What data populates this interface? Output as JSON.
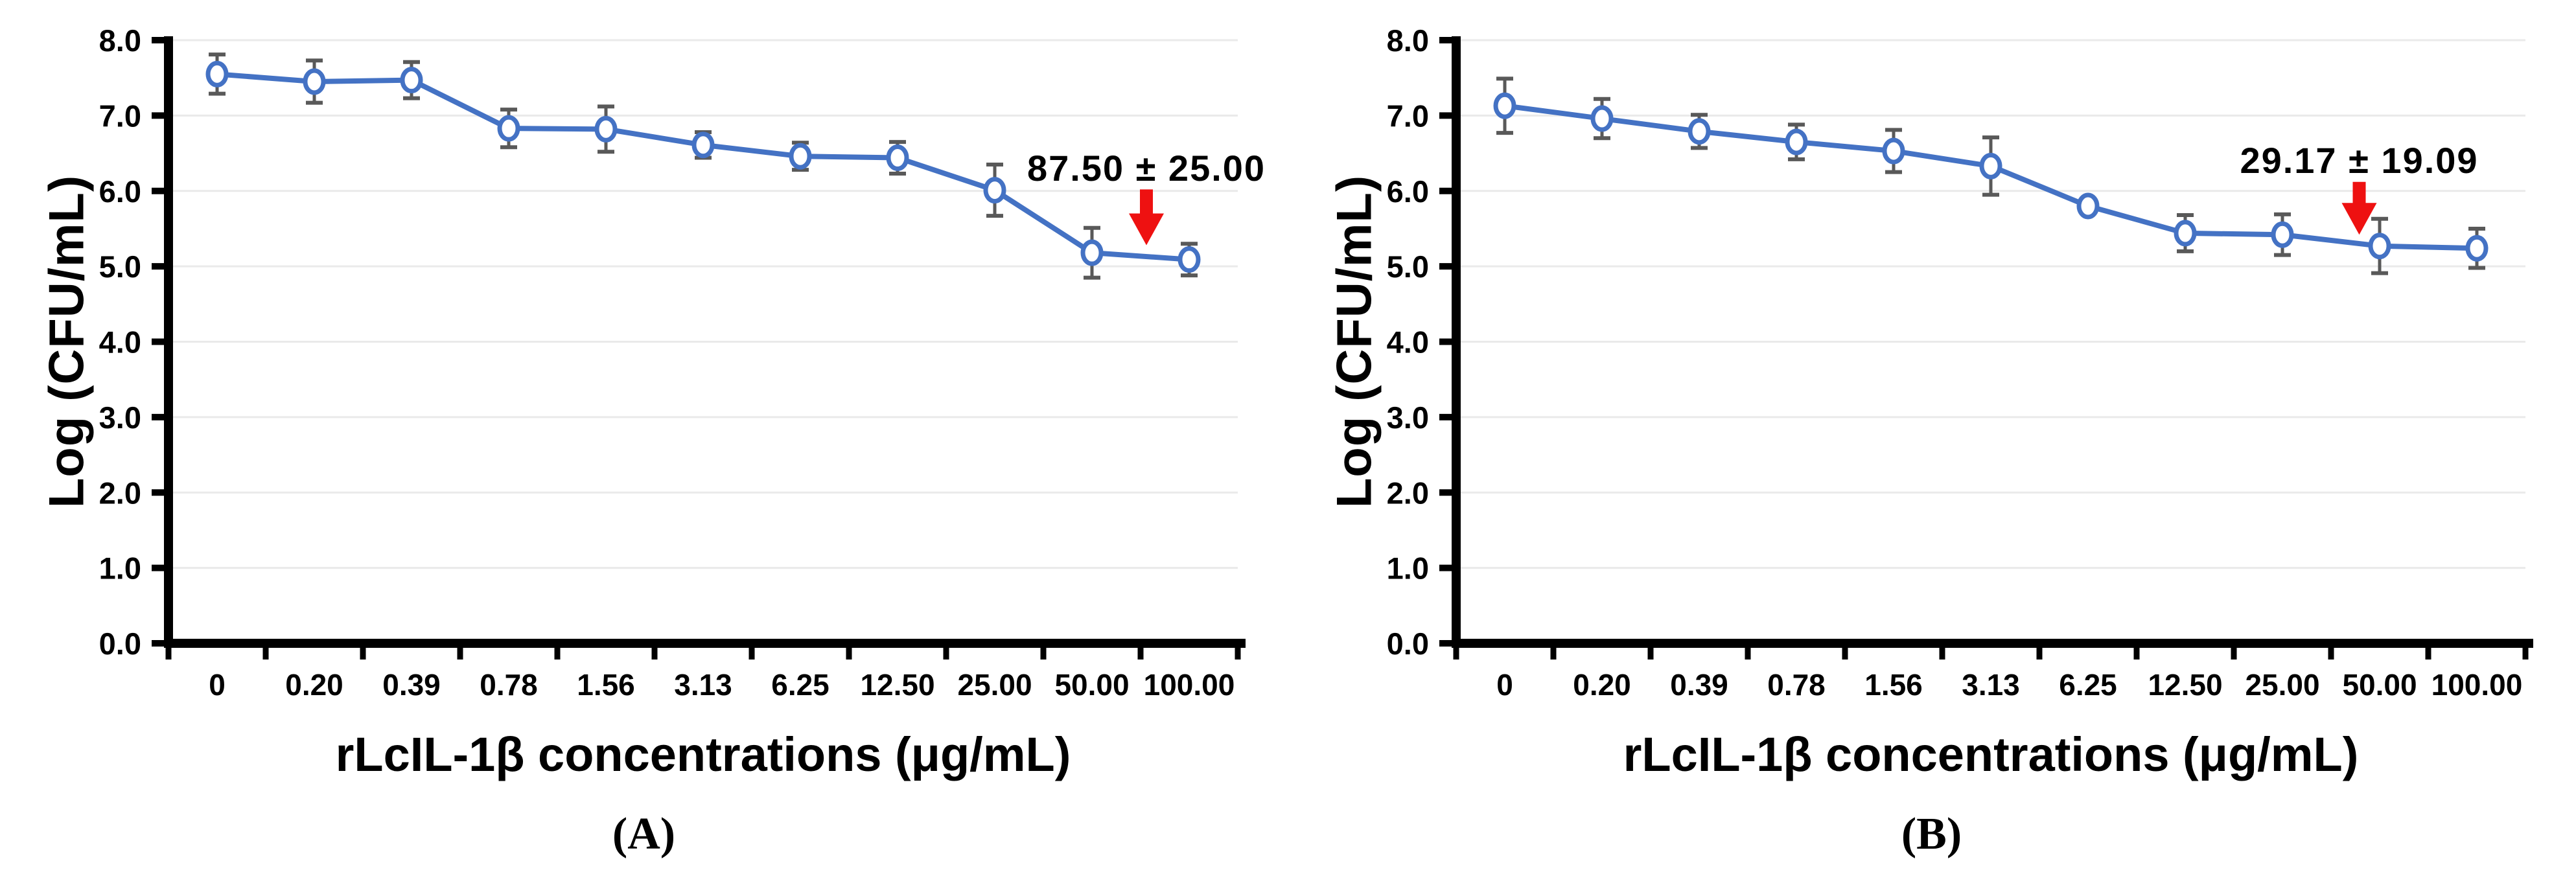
{
  "style": {
    "background": "#FFFFFF",
    "line_color": "#4472C4",
    "marker_fill": "#FFFFFF",
    "error_bar_color": "#595959",
    "grid_color": "#EAEAEA",
    "axis_color": "#000000",
    "arrow_color": "#EE1111",
    "text_color": "#000000"
  },
  "chart_data": [
    {
      "type": "line",
      "panel_label": "(A)",
      "xlabel": "rLcIL-1β concentrations (μg/mL)",
      "ylabel": "Log (CFU/mL)",
      "categories": [
        "0",
        "0.20",
        "0.39",
        "0.78",
        "1.56",
        "3.13",
        "6.25",
        "12.50",
        "25.00",
        "50.00",
        "100.00"
      ],
      "series": [
        {
          "name": "Log CFU/mL",
          "values": [
            7.55,
            7.45,
            7.47,
            6.83,
            6.82,
            6.61,
            6.46,
            6.44,
            6.01,
            5.18,
            5.09
          ],
          "errors": [
            0.26,
            0.28,
            0.24,
            0.25,
            0.3,
            0.17,
            0.18,
            0.21,
            0.34,
            0.33,
            0.21
          ]
        }
      ],
      "ylim": [
        0.0,
        8.0
      ],
      "ytick_labels": [
        "0.0",
        "1.0",
        "2.0",
        "3.0",
        "4.0",
        "5.0",
        "6.0",
        "7.0",
        "8.0"
      ],
      "grid": true,
      "legend": "none",
      "marker": "open-circle",
      "annotation": {
        "label": "87.50 ± 25.00",
        "x_index": 9.56,
        "label_y": 6.3,
        "arrow_top_y": 6.02,
        "arrow_tip_y": 5.28
      }
    },
    {
      "type": "line",
      "panel_label": "(B)",
      "xlabel": "rLcIL-1β concentrations (μg/mL)",
      "ylabel": "Log (CFU/mL)",
      "categories": [
        "0",
        "0.20",
        "0.39",
        "0.78",
        "1.56",
        "3.13",
        "6.25",
        "12.50",
        "25.00",
        "50.00",
        "100.00"
      ],
      "series": [
        {
          "name": "Log CFU/mL",
          "values": [
            7.13,
            6.96,
            6.79,
            6.65,
            6.53,
            6.33,
            5.8,
            5.44,
            5.42,
            5.27,
            5.24
          ],
          "errors": [
            0.36,
            0.26,
            0.22,
            0.23,
            0.28,
            0.38,
            0,
            0.24,
            0.27,
            0.36,
            0.26
          ]
        }
      ],
      "ylim": [
        0.0,
        8.0
      ],
      "ytick_labels": [
        "0.0",
        "1.0",
        "2.0",
        "3.0",
        "4.0",
        "5.0",
        "6.0",
        "7.0",
        "8.0"
      ],
      "grid": true,
      "legend": "none",
      "marker": "open-circle",
      "annotation": {
        "label": "29.17 ± 19.09",
        "x_index": 8.79,
        "label_y": 6.4,
        "arrow_top_y": 6.12,
        "arrow_tip_y": 5.42
      }
    }
  ]
}
